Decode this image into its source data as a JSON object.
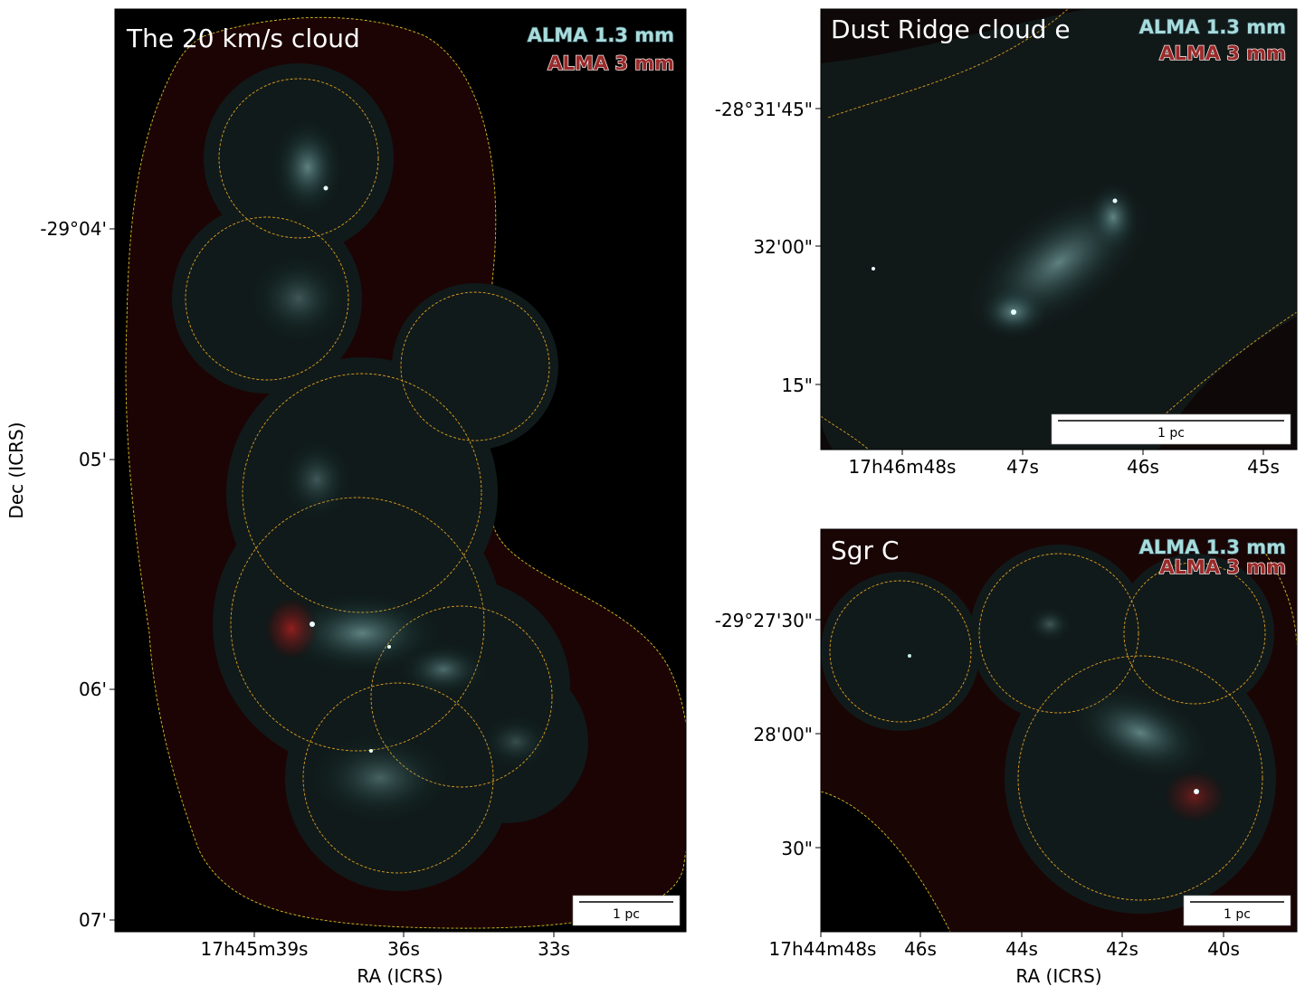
{
  "figure": {
    "xlabel": "RA (ICRS)",
    "ylabel": "Dec (ICRS)",
    "colors": {
      "background": "#000000",
      "alma_13mm": "#a9dcdc",
      "alma_3mm": "#9a2a2a",
      "mosaic_contour": "#e0a020",
      "field_contour": "#d8c020"
    },
    "panels": [
      {
        "title": "The 20 km/s cloud",
        "legend": [
          "ALMA 1.3 mm",
          "ALMA 3 mm"
        ],
        "scalebar": "1 pc",
        "dec_ticks": [
          "-29°04'",
          "05'",
          "06'",
          "07'"
        ],
        "ra_ticks": [
          "17h45m39s",
          "36s",
          "33s"
        ]
      },
      {
        "title": "Dust Ridge cloud e",
        "legend": [
          "ALMA 1.3 mm",
          "ALMA 3 mm"
        ],
        "scalebar": "1 pc",
        "dec_ticks": [
          "-28°31'45\"",
          "32'00\"",
          "15\""
        ],
        "ra_ticks": [
          "17h46m48s",
          "47s",
          "46s",
          "45s"
        ]
      },
      {
        "title": "Sgr C",
        "legend": [
          "ALMA 1.3 mm",
          "ALMA 3 mm"
        ],
        "scalebar": "1 pc",
        "dec_ticks": [
          "-29°27'30\"",
          "28'00\"",
          "30\""
        ],
        "ra_ticks": [
          "17h44m48s",
          "46s",
          "44s",
          "42s",
          "40s"
        ]
      }
    ]
  }
}
